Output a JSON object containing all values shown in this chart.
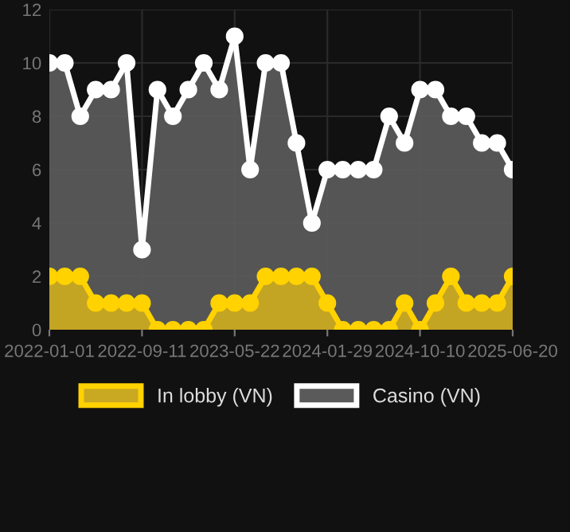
{
  "chart_data": {
    "type": "area",
    "categories": [
      "2022-01-01",
      null,
      null,
      null,
      null,
      null,
      "2022-09-11",
      null,
      null,
      null,
      null,
      null,
      "2023-05-22",
      null,
      null,
      null,
      null,
      null,
      "2024-01-29",
      null,
      null,
      null,
      null,
      null,
      "2024-10-10",
      null,
      null,
      null,
      null,
      null,
      "2025-06-20"
    ],
    "series": [
      {
        "name": "In lobby (VN)",
        "color": "#ffd200",
        "values": [
          2,
          2,
          2,
          1,
          1,
          1,
          1,
          0,
          0,
          0,
          0,
          1,
          1,
          1,
          2,
          2,
          2,
          2,
          1,
          0,
          0,
          0,
          0,
          1,
          0,
          1,
          2,
          1,
          1,
          1,
          2
        ]
      },
      {
        "name": "Casino (VN)",
        "color": "#ffffff",
        "values": [
          10,
          10,
          8,
          9,
          9,
          10,
          3,
          9,
          8,
          9,
          10,
          9,
          11,
          6,
          10,
          10,
          7,
          4,
          6,
          6,
          6,
          6,
          8,
          7,
          9,
          9,
          8,
          8,
          7,
          7,
          6
        ]
      }
    ],
    "ylim": [
      0,
      12
    ],
    "yticks": [
      0,
      2,
      4,
      6,
      8,
      10,
      12
    ],
    "grid": true,
    "legend": "bottom",
    "marker": "circle",
    "line_style": "solid"
  }
}
